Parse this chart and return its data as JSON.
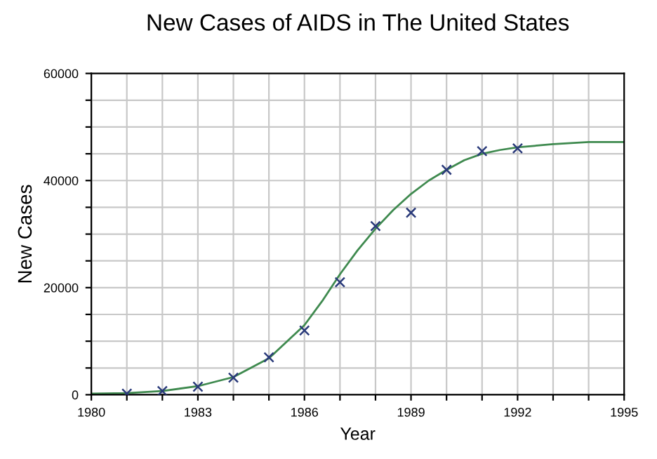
{
  "chart_data": {
    "type": "scatter",
    "title": "New Cases of AIDS in The United States",
    "xlabel": "Year",
    "ylabel": "New Cases",
    "xlim": [
      1980,
      1995
    ],
    "xticks": [
      1980,
      {
        "value": 1981,
        "label": null
      },
      {
        "value": 1982,
        "label": null
      },
      1983,
      {
        "value": 1984,
        "label": null
      },
      {
        "value": 1985,
        "label": null
      },
      1986,
      {
        "value": 1987,
        "label": null
      },
      {
        "value": 1988,
        "label": null
      },
      1989,
      {
        "value": 1990,
        "label": null
      },
      {
        "value": 1991,
        "label": null
      },
      1992,
      {
        "value": 1993,
        "label": null
      },
      {
        "value": 1994,
        "label": null
      },
      1995
    ],
    "ylim": [
      0,
      60000
    ],
    "yticks": [
      0,
      {
        "value": 5000,
        "label": null
      },
      {
        "value": 10000,
        "label": null
      },
      {
        "value": 15000,
        "label": null
      },
      20000,
      {
        "value": 25000,
        "label": null
      },
      {
        "value": 30000,
        "label": null
      },
      {
        "value": 35000,
        "label": null
      },
      40000,
      {
        "value": 45000,
        "label": null
      },
      {
        "value": 50000,
        "label": null
      },
      {
        "value": 55000,
        "label": null
      },
      60000
    ],
    "grid": true,
    "legend": false,
    "series": [
      {
        "marker": "cross",
        "color": "#2a3a7a",
        "x": [
          1981,
          1982,
          1983,
          1984,
          1985,
          1986,
          1987,
          1988,
          1989,
          1990,
          1991,
          1992
        ],
        "values": [
          200,
          700,
          1500,
          3200,
          7000,
          12000,
          21000,
          31500,
          34000,
          42000,
          45500,
          46000
        ]
      },
      {
        "type": "line",
        "color": "#3f8a4f",
        "marker": "none",
        "line_style": "solid",
        "x": [
          1980,
          1981,
          1982,
          1983,
          1984,
          1985,
          1986,
          1986.5,
          1987,
          1987.5,
          1988,
          1988.5,
          1989,
          1989.5,
          1990,
          1990.5,
          1991,
          1991.5,
          1992,
          1993,
          1994,
          1995
        ],
        "values": [
          200,
          300,
          700,
          1600,
          3300,
          6800,
          13000,
          17500,
          22500,
          27000,
          31000,
          34500,
          37500,
          40000,
          42000,
          43800,
          45000,
          45700,
          46200,
          46800,
          47200,
          47200
        ]
      }
    ]
  }
}
